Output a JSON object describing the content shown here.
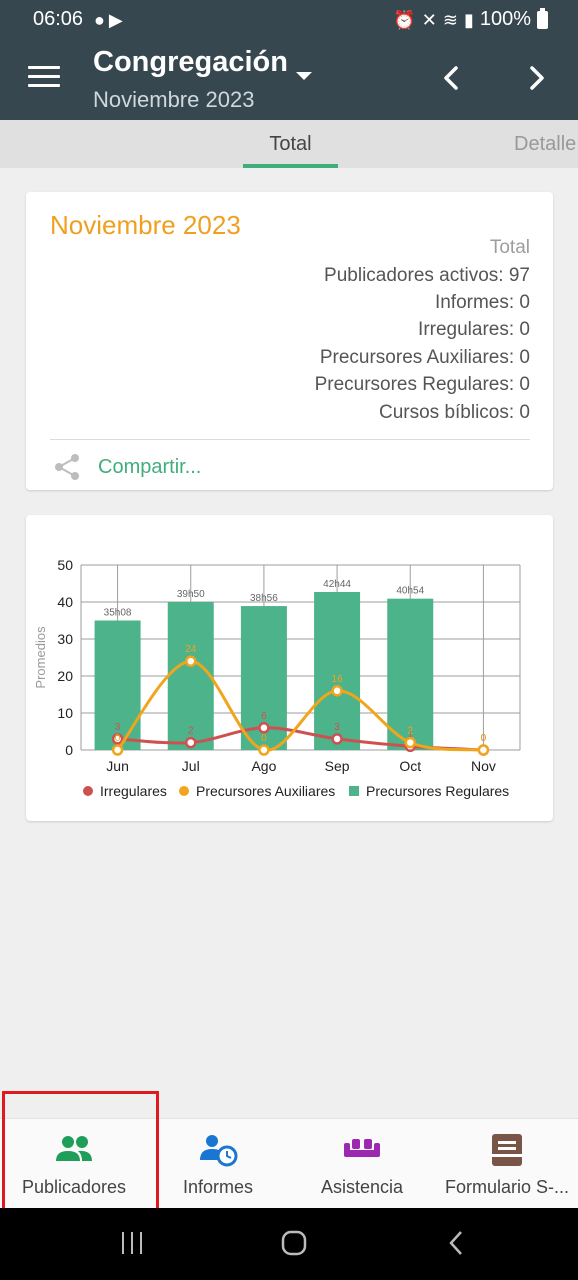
{
  "status_bar": {
    "time": "06:06",
    "battery": "100%"
  },
  "app_bar": {
    "title": "Congregación",
    "subtitle": "Noviembre 2023"
  },
  "tabs": {
    "total": "Total",
    "detalle": "Detalle"
  },
  "summary": {
    "month": "Noviembre 2023",
    "header": "Total",
    "stats": [
      "Publicadores activos: 97",
      "Informes: 0",
      "Irregulares: 0",
      "Precursores Auxiliares: 0",
      "Precursores Regulares: 0",
      "Cursos bíblicos: 0"
    ],
    "share_label": "Compartir..."
  },
  "chart_data": {
    "type": "bar",
    "ylabel": "Promedios",
    "categories": [
      "Jun",
      "Jul",
      "Ago",
      "Sep",
      "Oct",
      "Nov"
    ],
    "ylim": [
      0,
      50
    ],
    "yticks": [
      0,
      10,
      20,
      30,
      40,
      50
    ],
    "grid": true,
    "legend_position": "bottom",
    "series": [
      {
        "name": "Precursores Regulares",
        "kind": "bar",
        "color": "#4db38b",
        "values": [
          35,
          40,
          38.9,
          42.7,
          40.9,
          0
        ],
        "labels": [
          "35h08",
          "39h50",
          "38h56",
          "42h44",
          "40h54",
          ""
        ]
      },
      {
        "name": "Precursores Auxiliares",
        "kind": "line",
        "color": "#f0a51c",
        "values": [
          0,
          24,
          0,
          16,
          2,
          0
        ]
      },
      {
        "name": "Irregulares",
        "kind": "line",
        "color": "#cf5050",
        "values": [
          3,
          2,
          6,
          3,
          1,
          0
        ]
      }
    ]
  },
  "bottom_nav": [
    {
      "label": "Publicadores"
    },
    {
      "label": "Informes"
    },
    {
      "label": "Asistencia"
    },
    {
      "label": "Formulario S-..."
    }
  ]
}
